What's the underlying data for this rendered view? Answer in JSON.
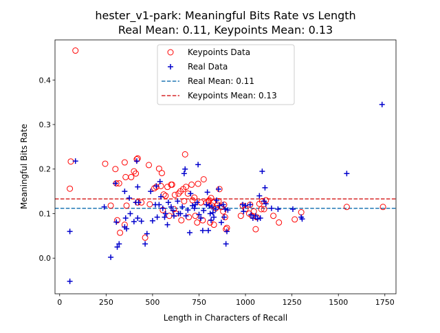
{
  "chart_data": {
    "type": "scatter",
    "title": "hester_v1-park: Meaningful Bits Rate vs Length",
    "subtitle": "Real Mean: 0.11, Keypoints Mean: 0.13",
    "xlabel": "Length in Characters of Recall",
    "ylabel": "Meaningful Bits Rate",
    "xlim": [
      -25,
      1810
    ],
    "ylim": [
      -0.08,
      0.49
    ],
    "xticks": [
      0,
      250,
      500,
      750,
      1000,
      1250,
      1500,
      1750
    ],
    "yticks": [
      0.0,
      0.1,
      0.2,
      0.3,
      0.4
    ],
    "xtick_labels": [
      "0",
      "250",
      "500",
      "750",
      "1000",
      "1250",
      "1500",
      "1750"
    ],
    "ytick_labels": [
      "0.0",
      "0.1",
      "0.2",
      "0.3",
      "0.4"
    ],
    "grid": false,
    "legend_position": "top-center",
    "series": [
      {
        "name": "Keypoints Data",
        "marker": "open-circle",
        "color": "#ff0000",
        "points": [
          [
            85,
            0.466
          ],
          [
            60,
            0.217
          ],
          [
            55,
            0.156
          ],
          [
            245,
            0.212
          ],
          [
            275,
            0.118
          ],
          [
            300,
            0.2
          ],
          [
            305,
            0.168
          ],
          [
            310,
            0.085
          ],
          [
            320,
            0.168
          ],
          [
            325,
            0.057
          ],
          [
            350,
            0.215
          ],
          [
            350,
            0.075
          ],
          [
            355,
            0.182
          ],
          [
            360,
            0.118
          ],
          [
            385,
            0.182
          ],
          [
            400,
            0.195
          ],
          [
            410,
            0.19
          ],
          [
            415,
            0.222
          ],
          [
            420,
            0.224
          ],
          [
            420,
            0.125
          ],
          [
            440,
            0.125
          ],
          [
            460,
            0.046
          ],
          [
            480,
            0.209
          ],
          [
            485,
            0.121
          ],
          [
            510,
            0.157
          ],
          [
            520,
            0.16
          ],
          [
            535,
            0.201
          ],
          [
            545,
            0.162
          ],
          [
            550,
            0.191
          ],
          [
            555,
            0.108
          ],
          [
            560,
            0.143
          ],
          [
            570,
            0.14
          ],
          [
            580,
            0.16
          ],
          [
            590,
            0.095
          ],
          [
            600,
            0.165
          ],
          [
            605,
            0.165
          ],
          [
            615,
            0.11
          ],
          [
            620,
            0.142
          ],
          [
            625,
            0.1
          ],
          [
            640,
            0.145
          ],
          [
            650,
            0.15
          ],
          [
            655,
            0.085
          ],
          [
            665,
            0.155
          ],
          [
            670,
            0.128
          ],
          [
            675,
            0.233
          ],
          [
            680,
            0.16
          ],
          [
            690,
            0.145
          ],
          [
            695,
            0.092
          ],
          [
            710,
            0.165
          ],
          [
            715,
            0.13
          ],
          [
            725,
            0.136
          ],
          [
            730,
            0.095
          ],
          [
            740,
            0.08
          ],
          [
            745,
            0.167
          ],
          [
            760,
            0.125
          ],
          [
            770,
            0.085
          ],
          [
            775,
            0.177
          ],
          [
            790,
            0.125
          ],
          [
            800,
            0.128
          ],
          [
            805,
            0.13
          ],
          [
            810,
            0.08
          ],
          [
            815,
            0.135
          ],
          [
            820,
            0.118
          ],
          [
            825,
            0.125
          ],
          [
            830,
            0.075
          ],
          [
            840,
            0.112
          ],
          [
            850,
            0.12
          ],
          [
            855,
            0.128
          ],
          [
            860,
            0.155
          ],
          [
            870,
            0.115
          ],
          [
            880,
            0.105
          ],
          [
            885,
            0.12
          ],
          [
            890,
            0.092
          ],
          [
            895,
            0.065
          ],
          [
            900,
            0.068
          ],
          [
            975,
            0.095
          ],
          [
            985,
            0.118
          ],
          [
            1000,
            0.11
          ],
          [
            1020,
            0.1
          ],
          [
            1025,
            0.12
          ],
          [
            1035,
            0.095
          ],
          [
            1045,
            0.105
          ],
          [
            1055,
            0.065
          ],
          [
            1060,
            0.092
          ],
          [
            1075,
            0.122
          ],
          [
            1085,
            0.11
          ],
          [
            1090,
            0.128
          ],
          [
            1100,
            0.11
          ],
          [
            1110,
            0.13
          ],
          [
            1150,
            0.095
          ],
          [
            1180,
            0.08
          ],
          [
            1265,
            0.087
          ],
          [
            1300,
            0.103
          ],
          [
            1545,
            0.115
          ],
          [
            1740,
            0.115
          ]
        ]
      },
      {
        "name": "Real Data",
        "marker": "plus",
        "color": "#0000cc",
        "points": [
          [
            55,
            0.06
          ],
          [
            55,
            -0.052
          ],
          [
            85,
            0.218
          ],
          [
            240,
            0.115
          ],
          [
            275,
            0.002
          ],
          [
            300,
            0.168
          ],
          [
            305,
            0.081
          ],
          [
            310,
            0.025
          ],
          [
            320,
            0.032
          ],
          [
            350,
            0.15
          ],
          [
            350,
            0.07
          ],
          [
            355,
            0.09
          ],
          [
            360,
            0.066
          ],
          [
            375,
            0.135
          ],
          [
            380,
            0.1
          ],
          [
            400,
            0.082
          ],
          [
            410,
            0.125
          ],
          [
            415,
            0.218
          ],
          [
            420,
            0.16
          ],
          [
            420,
            0.09
          ],
          [
            425,
            0.125
          ],
          [
            440,
            0.083
          ],
          [
            460,
            0.032
          ],
          [
            470,
            0.055
          ],
          [
            490,
            0.15
          ],
          [
            500,
            0.084
          ],
          [
            515,
            0.12
          ],
          [
            520,
            0.162
          ],
          [
            525,
            0.092
          ],
          [
            535,
            0.12
          ],
          [
            540,
            0.172
          ],
          [
            545,
            0.138
          ],
          [
            555,
            0.112
          ],
          [
            565,
            0.092
          ],
          [
            570,
            0.1
          ],
          [
            580,
            0.075
          ],
          [
            585,
            0.125
          ],
          [
            600,
            0.115
          ],
          [
            610,
            0.107
          ],
          [
            615,
            0.095
          ],
          [
            635,
            0.128
          ],
          [
            640,
            0.1
          ],
          [
            650,
            0.1
          ],
          [
            660,
            0.115
          ],
          [
            670,
            0.19
          ],
          [
            675,
            0.2
          ],
          [
            680,
            0.095
          ],
          [
            690,
            0.108
          ],
          [
            700,
            0.057
          ],
          [
            705,
            0.145
          ],
          [
            715,
            0.118
          ],
          [
            725,
            0.112
          ],
          [
            730,
            0.12
          ],
          [
            740,
            0.125
          ],
          [
            745,
            0.21
          ],
          [
            750,
            0.098
          ],
          [
            760,
            0.09
          ],
          [
            770,
            0.062
          ],
          [
            775,
            0.107
          ],
          [
            790,
            0.12
          ],
          [
            795,
            0.148
          ],
          [
            800,
            0.062
          ],
          [
            805,
            0.118
          ],
          [
            810,
            0.1
          ],
          [
            815,
            0.085
          ],
          [
            820,
            0.115
          ],
          [
            825,
            0.102
          ],
          [
            830,
            0.092
          ],
          [
            840,
            0.11
          ],
          [
            845,
            0.13
          ],
          [
            855,
            0.155
          ],
          [
            860,
            0.118
          ],
          [
            870,
            0.08
          ],
          [
            880,
            0.12
          ],
          [
            885,
            0.092
          ],
          [
            890,
            0.11
          ],
          [
            895,
            0.032
          ],
          [
            900,
            0.06
          ],
          [
            905,
            0.108
          ],
          [
            985,
            0.12
          ],
          [
            990,
            0.105
          ],
          [
            1000,
            0.118
          ],
          [
            1025,
            0.12
          ],
          [
            1030,
            0.097
          ],
          [
            1040,
            0.09
          ],
          [
            1055,
            0.095
          ],
          [
            1065,
            0.088
          ],
          [
            1075,
            0.14
          ],
          [
            1080,
            0.09
          ],
          [
            1090,
            0.195
          ],
          [
            1100,
            0.128
          ],
          [
            1105,
            0.158
          ],
          [
            1110,
            0.122
          ],
          [
            1140,
            0.112
          ],
          [
            1175,
            0.11
          ],
          [
            1255,
            0.11
          ],
          [
            1300,
            0.092
          ],
          [
            1305,
            0.088
          ],
          [
            1545,
            0.19
          ],
          [
            1735,
            0.345
          ]
        ]
      }
    ],
    "mean_lines": [
      {
        "name": "Real Mean: 0.11",
        "value": 0.112,
        "color": "#1f77b4",
        "style": "dashed"
      },
      {
        "name": "Keypoints Mean: 0.13",
        "value": 0.133,
        "color": "#d62728",
        "style": "dashed"
      }
    ]
  }
}
